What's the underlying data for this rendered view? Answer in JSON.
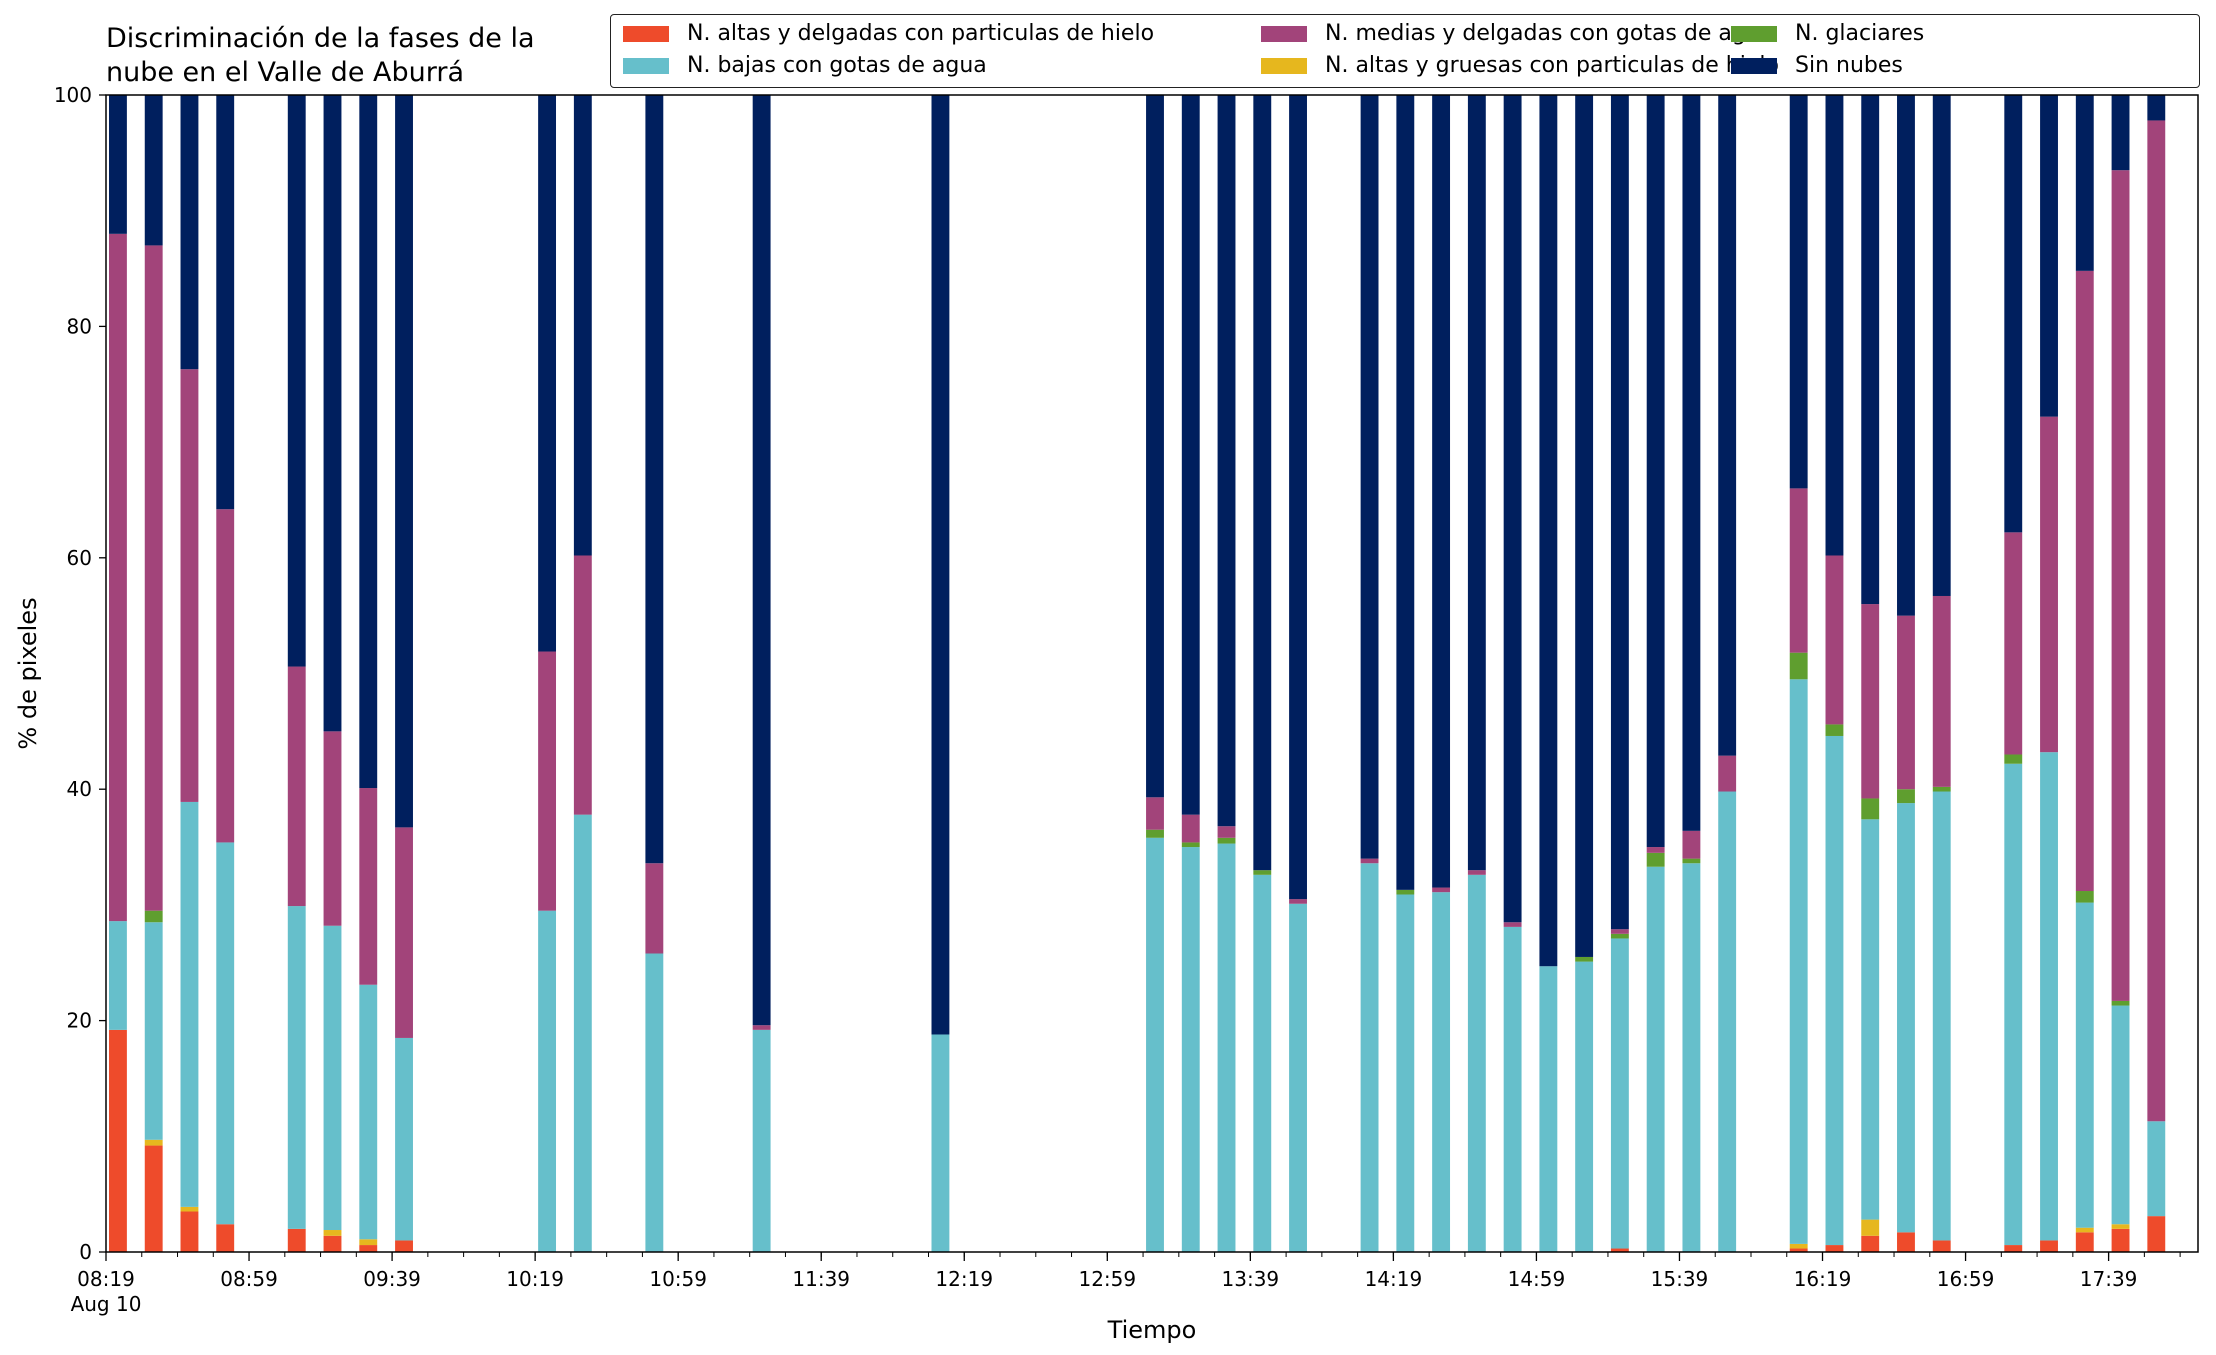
{
  "chart_data": {
    "type": "bar",
    "stacked": true,
    "title_lines": [
      "Discriminación de la fases de la",
      "nube en el Valle de Aburrá"
    ],
    "xlabel": "Tiempo",
    "ylabel": "% de pixeles",
    "ylim": [
      0,
      100
    ],
    "yticks": [
      0,
      20,
      40,
      60,
      80,
      100
    ],
    "grid": false,
    "legend_position": "top-right",
    "x_range_minutes": [
      499,
      1084
    ],
    "xticks": [
      {
        "min": 499,
        "label": "08:19",
        "sublabel": "Aug 10"
      },
      {
        "min": 539,
        "label": "08:59"
      },
      {
        "min": 579,
        "label": "09:39"
      },
      {
        "min": 619,
        "label": "10:19"
      },
      {
        "min": 659,
        "label": "10:59"
      },
      {
        "min": 699,
        "label": "11:39"
      },
      {
        "min": 739,
        "label": "12:19"
      },
      {
        "min": 779,
        "label": "12:59"
      },
      {
        "min": 819,
        "label": "13:39"
      },
      {
        "min": 859,
        "label": "14:19"
      },
      {
        "min": 899,
        "label": "14:59"
      },
      {
        "min": 939,
        "label": "15:39"
      },
      {
        "min": 979,
        "label": "16:19"
      },
      {
        "min": 1019,
        "label": "16:59"
      },
      {
        "min": 1059,
        "label": "17:39"
      }
    ],
    "minor_tick_step_minutes": 10,
    "bar_width_minutes": 5,
    "series": [
      {
        "name": "N. altas y delgadas con particulas de hielo",
        "color": "#ee4b2b"
      },
      {
        "name": "N. altas y gruesas con particulas de hielo",
        "color": "#e6b71e"
      },
      {
        "name": "N. bajas con gotas de agua",
        "color": "#66bfcb"
      },
      {
        "name": "N. glaciares",
        "color": "#5f9e2f"
      },
      {
        "name": "N. medias y delgadas con gotas de agua",
        "color": "#a2447a"
      },
      {
        "name": "Sin nubes",
        "color": "#001f5e"
      }
    ],
    "legend_order": [
      0,
      2,
      4,
      1,
      3,
      5
    ],
    "bars": [
      {
        "t": "08:19",
        "values": [
          19.2,
          0.0,
          9.4,
          0.0,
          59.4,
          12.0
        ]
      },
      {
        "t": "08:29",
        "values": [
          9.2,
          0.5,
          18.8,
          1.0,
          57.5,
          13.0
        ]
      },
      {
        "t": "08:39",
        "values": [
          3.5,
          0.4,
          35.0,
          0.0,
          37.4,
          23.7
        ]
      },
      {
        "t": "08:49",
        "values": [
          2.4,
          0.0,
          33.0,
          0.0,
          28.8,
          35.8
        ]
      },
      {
        "t": "09:09",
        "values": [
          2.0,
          0.0,
          27.9,
          0.0,
          20.7,
          49.4
        ]
      },
      {
        "t": "09:19",
        "values": [
          1.4,
          0.5,
          26.3,
          0.0,
          16.8,
          55.0
        ]
      },
      {
        "t": "09:29",
        "values": [
          0.6,
          0.5,
          22.0,
          0.0,
          17.0,
          59.9
        ]
      },
      {
        "t": "09:39",
        "values": [
          1.0,
          0.0,
          17.5,
          0.0,
          18.2,
          63.3
        ]
      },
      {
        "t": "10:19",
        "values": [
          0.0,
          0.0,
          29.5,
          0.0,
          22.4,
          48.1
        ]
      },
      {
        "t": "10:29",
        "values": [
          0.0,
          0.0,
          37.8,
          0.0,
          22.4,
          39.8
        ]
      },
      {
        "t": "10:49",
        "values": [
          0.0,
          0.0,
          25.8,
          0.0,
          7.8,
          66.4
        ]
      },
      {
        "t": "11:19",
        "values": [
          0.0,
          0.0,
          19.2,
          0.0,
          0.4,
          80.4
        ]
      },
      {
        "t": "12:09",
        "values": [
          0.0,
          0.0,
          18.8,
          0.0,
          0.0,
          81.2
        ]
      },
      {
        "t": "13:09",
        "values": [
          0.0,
          0.0,
          35.8,
          0.7,
          2.8,
          60.7
        ]
      },
      {
        "t": "13:19",
        "values": [
          0.0,
          0.0,
          35.0,
          0.4,
          2.4,
          62.2
        ]
      },
      {
        "t": "13:29",
        "values": [
          0.0,
          0.0,
          35.3,
          0.5,
          1.0,
          63.2
        ]
      },
      {
        "t": "13:39",
        "values": [
          0.0,
          0.0,
          32.6,
          0.4,
          0.0,
          67.0
        ]
      },
      {
        "t": "13:49",
        "values": [
          0.0,
          0.0,
          30.1,
          0.0,
          0.4,
          69.5
        ]
      },
      {
        "t": "14:09",
        "values": [
          0.0,
          0.0,
          33.6,
          0.0,
          0.4,
          66.0
        ]
      },
      {
        "t": "14:19",
        "values": [
          0.0,
          0.0,
          30.9,
          0.4,
          0.0,
          68.7
        ]
      },
      {
        "t": "14:29",
        "values": [
          0.0,
          0.0,
          31.1,
          0.0,
          0.4,
          68.5
        ]
      },
      {
        "t": "14:39",
        "values": [
          0.0,
          0.0,
          32.6,
          0.0,
          0.4,
          67.0
        ]
      },
      {
        "t": "14:49",
        "values": [
          0.0,
          0.0,
          28.1,
          0.0,
          0.4,
          71.5
        ]
      },
      {
        "t": "14:59",
        "values": [
          0.0,
          0.0,
          24.7,
          0.0,
          0.0,
          75.3
        ]
      },
      {
        "t": "15:09",
        "values": [
          0.0,
          0.0,
          25.1,
          0.4,
          0.0,
          74.5
        ]
      },
      {
        "t": "15:19",
        "values": [
          0.3,
          0.0,
          26.8,
          0.4,
          0.4,
          72.1
        ]
      },
      {
        "t": "15:29",
        "values": [
          0.0,
          0.0,
          33.3,
          1.2,
          0.5,
          65.0
        ]
      },
      {
        "t": "15:39",
        "values": [
          0.0,
          0.0,
          33.6,
          0.4,
          2.4,
          63.6
        ]
      },
      {
        "t": "15:49",
        "values": [
          0.0,
          0.0,
          39.8,
          0.0,
          3.1,
          57.1
        ]
      },
      {
        "t": "16:09",
        "values": [
          0.3,
          0.4,
          48.8,
          2.3,
          14.2,
          34.0
        ]
      },
      {
        "t": "16:19",
        "values": [
          0.6,
          0.0,
          44.0,
          1.0,
          14.6,
          39.8
        ]
      },
      {
        "t": "16:29",
        "values": [
          1.4,
          1.4,
          34.6,
          1.8,
          16.8,
          44.0
        ]
      },
      {
        "t": "16:39",
        "values": [
          1.7,
          0.0,
          37.1,
          1.2,
          15.0,
          45.0
        ]
      },
      {
        "t": "16:49",
        "values": [
          1.0,
          0.0,
          38.8,
          0.4,
          16.5,
          43.3
        ]
      },
      {
        "t": "17:09",
        "values": [
          0.6,
          0.0,
          41.6,
          0.8,
          19.2,
          37.8
        ]
      },
      {
        "t": "17:19",
        "values": [
          1.0,
          0.0,
          42.2,
          0.0,
          29.0,
          27.8
        ]
      },
      {
        "t": "17:29",
        "values": [
          1.7,
          0.4,
          28.1,
          1.0,
          53.6,
          15.2
        ]
      },
      {
        "t": "17:39",
        "values": [
          2.0,
          0.4,
          18.9,
          0.4,
          71.8,
          6.5
        ]
      },
      {
        "t": "17:49",
        "values": [
          3.1,
          0.0,
          8.2,
          0.0,
          86.5,
          2.2
        ]
      }
    ]
  }
}
